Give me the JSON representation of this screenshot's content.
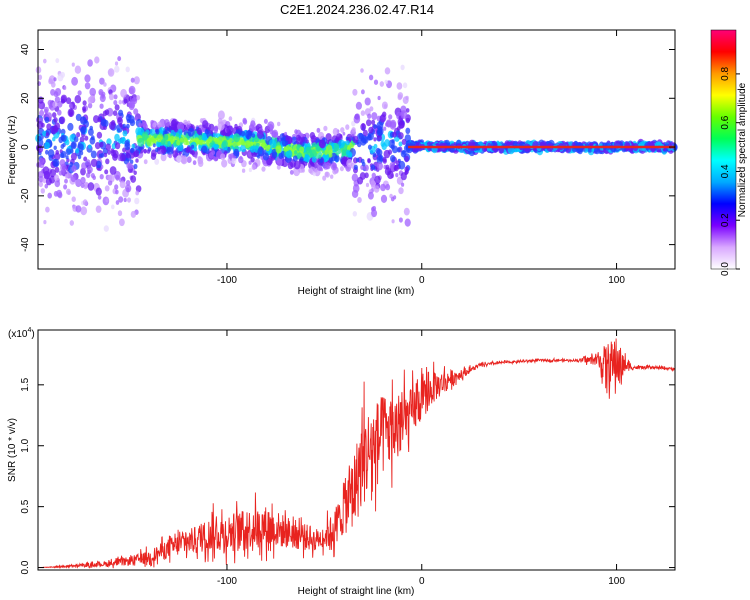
{
  "title": "C2E1.2024.236.02.47.R14",
  "colors": {
    "snr_line": "#e8231f",
    "zero_line": "#e8231f",
    "scatter_palette": [
      "#e7d9ff",
      "#c99cff",
      "#a060ff",
      "#6a18f0",
      "#2040ff",
      "#00c8ff",
      "#20e0a0",
      "#8bff3a",
      "#ff2a2a"
    ]
  },
  "chart_data": [
    {
      "type": "heatmap",
      "xlabel": "Height of straight line (km)",
      "ylabel": "Frequency (Hz)",
      "xlim": [
        -197,
        130
      ],
      "ylim": [
        -50,
        48
      ],
      "xticks": [
        -100,
        0,
        100
      ],
      "xtick_labels": [
        "-100",
        "0",
        "100"
      ],
      "yticks": [
        40,
        20,
        0,
        -20,
        -40
      ],
      "ytick_labels": [
        "40",
        "20",
        "0",
        "-20",
        "-40"
      ],
      "colorbar": {
        "label": "Normalized spectral amplitude",
        "range": [
          0,
          0.98
        ],
        "ticks": [
          0.0,
          0.2,
          0.4,
          0.6,
          0.8
        ],
        "tick_labels": [
          "0.0",
          "0.2",
          "0.4",
          "0.6",
          "0.8"
        ],
        "colormap": [
          "#ffffff",
          "#d9a8ff",
          "#7a00ff",
          "#0000ff",
          "#00aaff",
          "#00ffff",
          "#00ff55",
          "#66ff00",
          "#ffff00",
          "#ff9900",
          "#ff0000",
          "#ff0077"
        ]
      },
      "ridge": {
        "x": [
          -197,
          -175,
          -150,
          -125,
          -100,
          -85,
          -70,
          -60,
          -50,
          -40,
          -35,
          -30,
          -20,
          -10,
          -5,
          0,
          10,
          30,
          60,
          90,
          130
        ],
        "y": [
          3,
          3,
          3,
          3,
          2,
          1.5,
          -1,
          -2,
          -2,
          -1.5,
          0,
          0,
          0.5,
          0.5,
          0.5,
          0.5,
          0,
          0,
          0,
          0,
          0
        ]
      },
      "spread_hz": [
        {
          "x_range": [
            -197,
            -145
          ],
          "half_width": 45
        },
        {
          "x_range": [
            -145,
            -35
          ],
          "half_width": 12
        },
        {
          "x_range": [
            -35,
            -7
          ],
          "half_width": 40
        },
        {
          "x_range": [
            -7,
            130
          ],
          "half_width": 2
        }
      ]
    },
    {
      "type": "line",
      "series": [
        {
          "x": [
            -197,
            -180,
            -160,
            -150,
            -140,
            -130,
            -120,
            -110,
            -100,
            -90,
            -80,
            -70,
            -60,
            -55,
            -50,
            -45,
            -40,
            -35,
            -30,
            -25,
            -20,
            -15,
            -10,
            -5,
            0,
            5,
            10,
            15,
            20,
            25,
            30,
            40,
            50,
            60,
            70,
            80,
            90,
            95,
            100,
            105,
            110,
            120,
            130
          ],
          "y": [
            0.0,
            0.01,
            0.03,
            0.05,
            0.08,
            0.15,
            0.2,
            0.25,
            0.27,
            0.3,
            0.32,
            0.28,
            0.24,
            0.22,
            0.24,
            0.3,
            0.45,
            0.6,
            0.85,
            0.95,
            1.05,
            1.1,
            1.15,
            1.25,
            1.35,
            1.45,
            1.5,
            1.55,
            1.58,
            1.62,
            1.66,
            1.68,
            1.69,
            1.7,
            1.7,
            1.7,
            1.7,
            1.65,
            1.66,
            1.65,
            1.64,
            1.64,
            1.63
          ],
          "noise_amplitude": [
            0,
            0.02,
            0.05,
            0.08,
            0.12,
            0.18,
            0.22,
            0.3,
            0.35,
            0.35,
            0.38,
            0.3,
            0.25,
            0.2,
            0.2,
            0.35,
            0.45,
            0.7,
            0.85,
            0.8,
            0.75,
            0.65,
            0.55,
            0.45,
            0.35,
            0.3,
            0.22,
            0.15,
            0.08,
            0.05,
            0.03,
            0.02,
            0.02,
            0.02,
            0.02,
            0.02,
            0.1,
            0.4,
            0.45,
            0.1,
            0.03,
            0.02,
            0.02
          ]
        }
      ],
      "xlabel": "Height of straight line (km)",
      "ylabel": "SNR (10 * v/v)",
      "y_multiplier": "(x10",
      "y_multiplier_exp": "4",
      "y_multiplier_close": ")",
      "xlim": [
        -197,
        130
      ],
      "ylim": [
        -0.02,
        1.95
      ],
      "xticks": [
        -100,
        0,
        100
      ],
      "xtick_labels": [
        "-100",
        "0",
        "100"
      ],
      "yticks": [
        0.0,
        0.5,
        1.0,
        1.5
      ],
      "ytick_labels": [
        "0.0",
        "0.5",
        "1.0",
        "1.5"
      ]
    }
  ]
}
